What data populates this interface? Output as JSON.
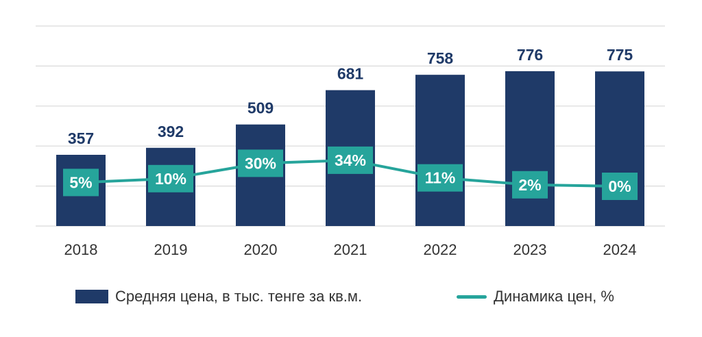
{
  "chart_data": {
    "type": "bar",
    "categories": [
      "2018",
      "2019",
      "2020",
      "2021",
      "2022",
      "2023",
      "2024"
    ],
    "series": [
      {
        "name": "Средняя цена, в тыс. тенге за кв.м.",
        "type": "bar",
        "values": [
          357,
          392,
          509,
          681,
          758,
          776,
          775
        ],
        "labels": [
          "357",
          "392",
          "509",
          "681",
          "758",
          "776",
          "775"
        ]
      },
      {
        "name": "Динамика цен, %",
        "type": "line",
        "values": [
          5,
          10,
          30,
          34,
          11,
          2,
          0
        ],
        "labels": [
          "5%",
          "10%",
          "30%",
          "34%",
          "11%",
          "2%",
          "0%"
        ]
      }
    ],
    "ylim": [
      0,
      1000
    ],
    "grid": true,
    "legend_position": "bottom",
    "colors": {
      "bar": "#1f3a68",
      "line": "#26a49b",
      "grid": "#d9d9d9"
    }
  },
  "legend": {
    "bar_label": "Средняя цена, в тыс. тенге за кв.м.",
    "line_label": "Динамика цен, %"
  }
}
